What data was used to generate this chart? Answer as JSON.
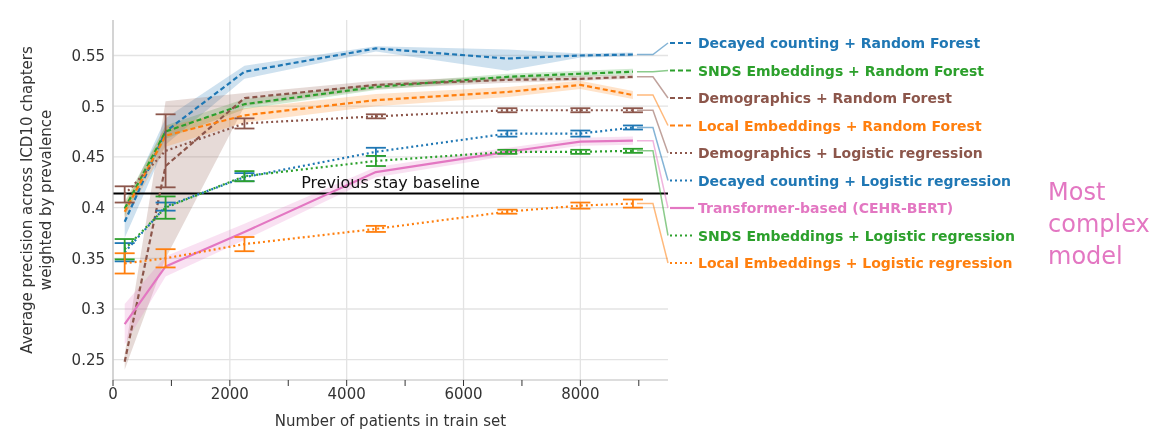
{
  "chart_data": {
    "type": "line",
    "xlabel": "Number of patients in train set",
    "ylabel": "Average precision across ICD10 chapters weighted by prevalence",
    "x": [
      200,
      900,
      2250,
      4500,
      6750,
      8000,
      8900
    ],
    "xlim": [
      0,
      9500
    ],
    "xticks": [
      0,
      {
        "value": 1000,
        "label": null
      },
      2000,
      {
        "value": 3000,
        "label": null
      },
      4000,
      {
        "value": 5000,
        "label": null
      },
      6000,
      {
        "value": 7000,
        "label": null
      },
      8000,
      {
        "value": 9000,
        "label": null
      }
    ],
    "ylim": [
      0.23,
      0.585
    ],
    "yticks": [
      0.25,
      0.3,
      0.35,
      0.4,
      0.45,
      0.5,
      0.55
    ],
    "grid": true,
    "legend": "right",
    "marker": "none",
    "ref_lines": [
      {
        "axis": "y",
        "value": 0.414,
        "label": "Previous stay baseline",
        "color": "#000000"
      }
    ],
    "annotations": [
      "Most complex model"
    ],
    "series": [
      {
        "name": "Decayed counting + Random Forest",
        "color": "#1f77b4",
        "line_style": "dashed",
        "values": [
          0.386,
          0.475,
          0.534,
          0.557,
          0.547,
          0.55,
          0.551
        ],
        "lower": [
          0.37,
          0.462,
          0.527,
          0.554,
          0.535,
          0.548,
          0.549
        ],
        "upper": [
          0.4,
          0.488,
          0.54,
          0.559,
          0.556,
          0.552,
          0.553
        ]
      },
      {
        "name": "SNDS Embeddings + Random Forest",
        "color": "#2ca02c",
        "line_style": "dashed",
        "values": [
          0.399,
          0.475,
          0.502,
          0.519,
          0.529,
          0.532,
          0.534
        ],
        "lower": [
          0.392,
          0.468,
          0.497,
          0.516,
          0.526,
          0.529,
          0.531
        ],
        "upper": [
          0.406,
          0.481,
          0.507,
          0.522,
          0.532,
          0.535,
          0.537
        ]
      },
      {
        "name": "Demographics + Random Forest",
        "color": "#8c564b",
        "line_style": "dashed",
        "values": [
          0.248,
          0.441,
          0.508,
          0.521,
          0.526,
          0.527,
          0.529
        ],
        "lower": [
          0.24,
          0.35,
          0.5,
          0.517,
          0.523,
          0.525,
          0.527
        ],
        "upper": [
          0.256,
          0.505,
          0.513,
          0.525,
          0.529,
          0.53,
          0.531
        ]
      },
      {
        "name": "Local Embeddings + Random Forest",
        "color": "#ff7f0e",
        "line_style": "dashed",
        "values": [
          0.396,
          0.471,
          0.491,
          0.506,
          0.514,
          0.521,
          0.511
        ],
        "lower": [
          0.388,
          0.46,
          0.484,
          0.5,
          0.509,
          0.517,
          0.507
        ],
        "upper": [
          0.404,
          0.48,
          0.498,
          0.512,
          0.519,
          0.525,
          0.515
        ]
      },
      {
        "name": "Demographics + Logistic regression",
        "color": "#8c564b",
        "line_style": "dotted",
        "values": [
          0.413,
          0.456,
          0.483,
          0.49,
          0.496,
          0.496,
          0.496
        ],
        "errors": [
          0.008,
          0.036,
          0.005,
          0.002,
          0.002,
          0.002,
          0.002
        ]
      },
      {
        "name": "Decayed counting + Logistic regression",
        "color": "#1f77b4",
        "line_style": "dotted",
        "values": [
          0.356,
          0.401,
          0.43,
          0.455,
          0.473,
          0.473,
          0.479
        ],
        "errors": [
          0.009,
          0.004,
          0.004,
          0.004,
          0.003,
          0.003,
          0.002
        ]
      },
      {
        "name": "Transformer-based (CEHR-BERT)",
        "color": "#e377c2",
        "line_style": "solid",
        "values": [
          0.285,
          0.342,
          0.376,
          0.435,
          0.455,
          0.465,
          0.466
        ],
        "lower": [
          0.265,
          0.332,
          0.368,
          0.43,
          0.451,
          0.461,
          0.462
        ],
        "upper": [
          0.305,
          0.352,
          0.384,
          0.44,
          0.459,
          0.469,
          0.47
        ]
      },
      {
        "name": "SNDS Embeddings + Logistic regression",
        "color": "#2ca02c",
        "line_style": "dotted",
        "values": [
          0.359,
          0.4,
          0.431,
          0.446,
          0.455,
          0.455,
          0.456
        ],
        "errors": [
          0.01,
          0.011,
          0.005,
          0.005,
          0.002,
          0.002,
          0.002
        ]
      },
      {
        "name": "Local Embeddings + Logistic regression",
        "color": "#ff7f0e",
        "line_style": "dotted",
        "values": [
          0.345,
          0.35,
          0.364,
          0.379,
          0.396,
          0.402,
          0.404
        ],
        "errors": [
          0.01,
          0.009,
          0.007,
          0.003,
          0.002,
          0.003,
          0.004
        ]
      }
    ]
  }
}
